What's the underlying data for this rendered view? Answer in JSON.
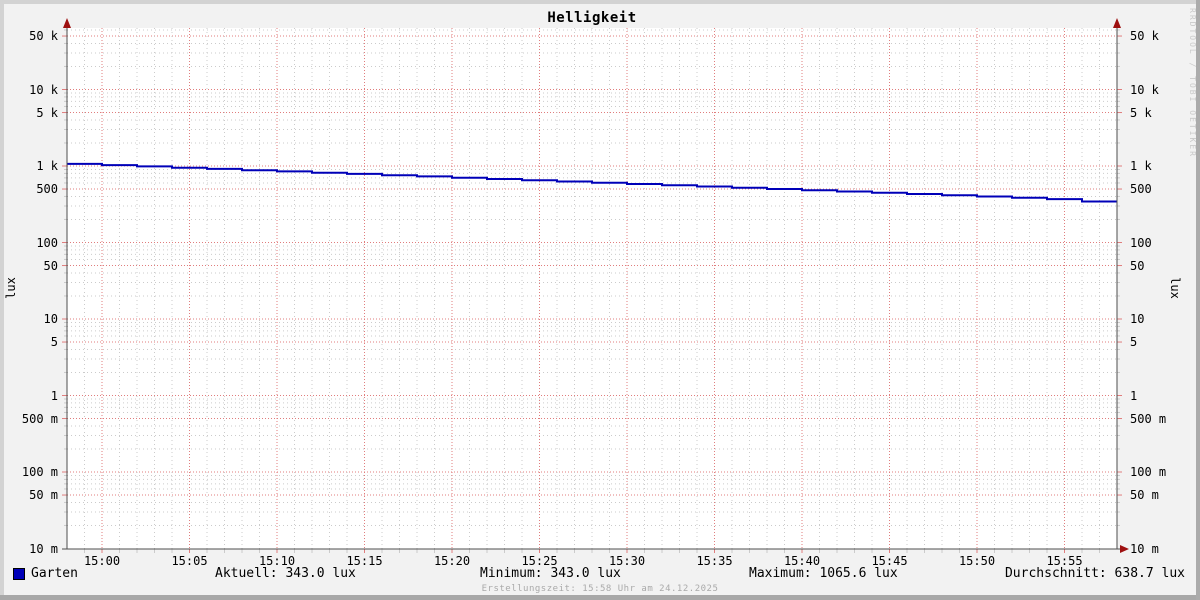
{
  "title": "Helligkeit",
  "watermark": "RRDTOOL / TOBI OETIKER",
  "footer": "Erstellungszeit: 15:58 Uhr am 24.12.2025",
  "y_axis": {
    "unit": "lux",
    "ticks": [
      {
        "label": "50 k",
        "value": 50000
      },
      {
        "label": "10 k",
        "value": 10000
      },
      {
        "label": "5 k",
        "value": 5000
      },
      {
        "label": "1 k",
        "value": 1000
      },
      {
        "label": "500",
        "value": 500
      },
      {
        "label": "100",
        "value": 100
      },
      {
        "label": "50",
        "value": 50
      },
      {
        "label": "10",
        "value": 10
      },
      {
        "label": "5",
        "value": 5
      },
      {
        "label": "1",
        "value": 1
      },
      {
        "label": "500 m",
        "value": 0.5
      },
      {
        "label": "100 m",
        "value": 0.1
      },
      {
        "label": "50 m",
        "value": 0.05
      },
      {
        "label": "10 m",
        "value": 0.01
      }
    ]
  },
  "x_axis": {
    "ticks": [
      {
        "label": "15:00",
        "minute": 2
      },
      {
        "label": "15:05",
        "minute": 7
      },
      {
        "label": "15:10",
        "minute": 12
      },
      {
        "label": "15:15",
        "minute": 17
      },
      {
        "label": "15:20",
        "minute": 22
      },
      {
        "label": "15:25",
        "minute": 27
      },
      {
        "label": "15:30",
        "minute": 32
      },
      {
        "label": "15:35",
        "minute": 37
      },
      {
        "label": "15:40",
        "minute": 42
      },
      {
        "label": "15:45",
        "minute": 47
      },
      {
        "label": "15:50",
        "minute": 52
      },
      {
        "label": "15:55",
        "minute": 57
      }
    ]
  },
  "legend": {
    "series_label": "Garten",
    "series_color": "#0000b8",
    "stats": {
      "aktuell": "Aktuell: 343.0 lux",
      "minimum": "Minimum: 343.0 lux",
      "maximum": "Maximum: 1065.6 lux",
      "durchschnitt": "Durchschnitt: 638.7 lux"
    }
  },
  "colors": {
    "line": "#0000b8",
    "major_grid": "#e07d7d",
    "minor_grid": "#cbcbcb",
    "axis": "#4d4d4d",
    "arrow": "#9e1010",
    "canvas": "#ffffff",
    "background": "#f2f2f2"
  },
  "chart_data": {
    "type": "line",
    "title": "Helligkeit",
    "ylabel": "lux",
    "y_scale": "log",
    "ylim": [
      0.01,
      63000
    ],
    "x_start": "14:58",
    "x_end": "15:58",
    "x_tick_labels": [
      "15:00",
      "15:05",
      "15:10",
      "15:15",
      "15:20",
      "15:25",
      "15:30",
      "15:35",
      "15:40",
      "15:45",
      "15:50",
      "15:55"
    ],
    "grid": true,
    "legend_position": "bottom",
    "series": [
      {
        "name": "Garten",
        "color": "#0000b8",
        "step": true,
        "x_minutes": [
          0,
          2,
          4,
          6,
          8,
          10,
          12,
          14,
          16,
          18,
          20,
          22,
          24,
          26,
          28,
          30,
          32,
          34,
          36,
          38,
          40,
          42,
          44,
          46,
          48,
          50,
          52,
          54,
          56,
          58,
          60
        ],
        "values": [
          1065.6,
          1026.1,
          988.0,
          951.4,
          916.1,
          882.1,
          849.4,
          817.9,
          787.6,
          758.4,
          730.2,
          703.1,
          677.1,
          651.9,
          627.8,
          604.5,
          582.1,
          560.5,
          539.7,
          519.7,
          500.4,
          481.8,
          464.0,
          446.7,
          430.2,
          414.2,
          398.9,
          384.1,
          369.8,
          343.0,
          343.0
        ]
      }
    ],
    "stats": {
      "aktuell_lux": 343.0,
      "minimum_lux": 343.0,
      "maximum_lux": 1065.6,
      "durchschnitt_lux": 638.7
    }
  }
}
